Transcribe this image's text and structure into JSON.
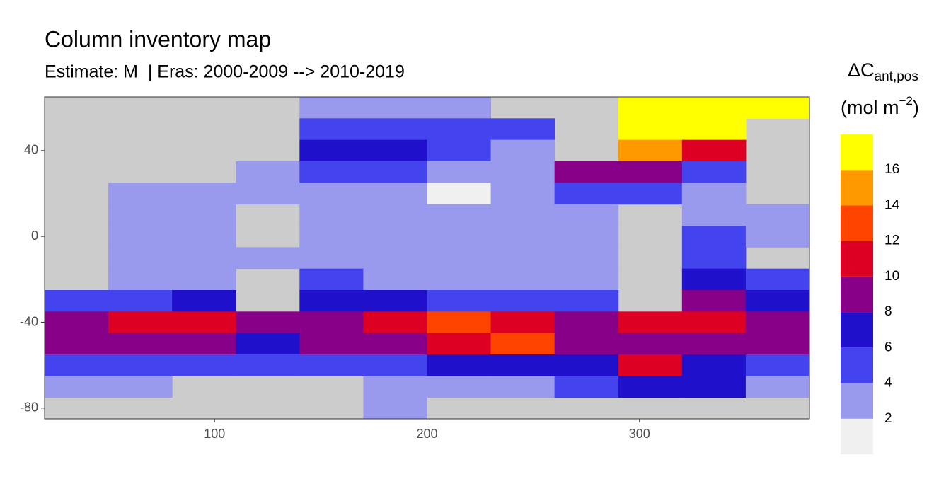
{
  "chart_data": {
    "type": "map",
    "title": "Column inventory map",
    "subtitle": "Estimate: M  | Eras: 2000-2009 --> 2010-2019",
    "xlim": [
      20,
      380
    ],
    "ylim": [
      -85,
      65
    ],
    "xticks": [
      100,
      200,
      300
    ],
    "yticks": [
      40,
      0,
      -40,
      -80
    ],
    "land_color": "#cccccc",
    "lon": [
      35,
      65,
      95,
      125,
      155,
      185,
      215,
      245,
      275,
      305,
      335,
      365
    ],
    "lat": [
      60,
      50,
      40,
      30,
      20,
      10,
      0,
      -10,
      -20,
      -30,
      -40,
      -50,
      -60,
      -70,
      -80
    ],
    "z": [
      [
        null,
        null,
        null,
        null,
        3,
        3,
        3,
        null,
        null,
        17,
        17,
        17
      ],
      [
        null,
        null,
        null,
        null,
        5,
        5,
        5,
        5,
        null,
        17,
        17,
        null
      ],
      [
        null,
        null,
        null,
        null,
        7,
        7,
        5,
        3,
        null,
        15,
        11,
        null
      ],
      [
        null,
        null,
        null,
        3,
        5,
        5,
        3,
        3,
        9,
        9,
        5,
        null
      ],
      [
        null,
        3,
        3,
        3,
        3,
        3,
        1,
        3,
        5,
        5,
        3,
        null
      ],
      [
        null,
        3,
        3,
        null,
        3,
        3,
        3,
        3,
        3,
        null,
        3,
        3
      ],
      [
        null,
        3,
        3,
        null,
        3,
        3,
        3,
        3,
        3,
        null,
        5,
        3
      ],
      [
        null,
        3,
        3,
        3,
        3,
        3,
        3,
        3,
        3,
        null,
        5,
        null
      ],
      [
        null,
        3,
        3,
        null,
        5,
        3,
        3,
        3,
        3,
        null,
        7,
        5
      ],
      [
        5,
        5,
        7,
        null,
        7,
        7,
        5,
        5,
        5,
        null,
        9,
        7
      ],
      [
        9,
        11,
        11,
        9,
        9,
        11,
        13,
        11,
        9,
        11,
        11,
        9
      ],
      [
        9,
        9,
        9,
        7,
        9,
        9,
        11,
        13,
        9,
        9,
        9,
        9
      ],
      [
        5,
        5,
        5,
        5,
        5,
        5,
        7,
        7,
        7,
        11,
        7,
        5
      ],
      [
        3,
        3,
        null,
        null,
        null,
        3,
        3,
        3,
        5,
        7,
        7,
        3
      ],
      [
        null,
        null,
        null,
        null,
        null,
        3,
        null,
        null,
        null,
        null,
        null,
        null
      ]
    ],
    "legend": {
      "title": "ΔC",
      "title_sub": "ant,pos",
      "units": "(mol m",
      "units_sup": "−2",
      "units_close": ")",
      "limits": [
        0,
        18
      ],
      "breaks": [
        2,
        4,
        6,
        8,
        10,
        12,
        14,
        16
      ],
      "colors": [
        "#f0f0f0",
        "#9999ee",
        "#4444ee",
        "#1f10cc",
        "#880088",
        "#dd0022",
        "#ff4400",
        "#ff9900",
        "#ffff00"
      ]
    }
  }
}
